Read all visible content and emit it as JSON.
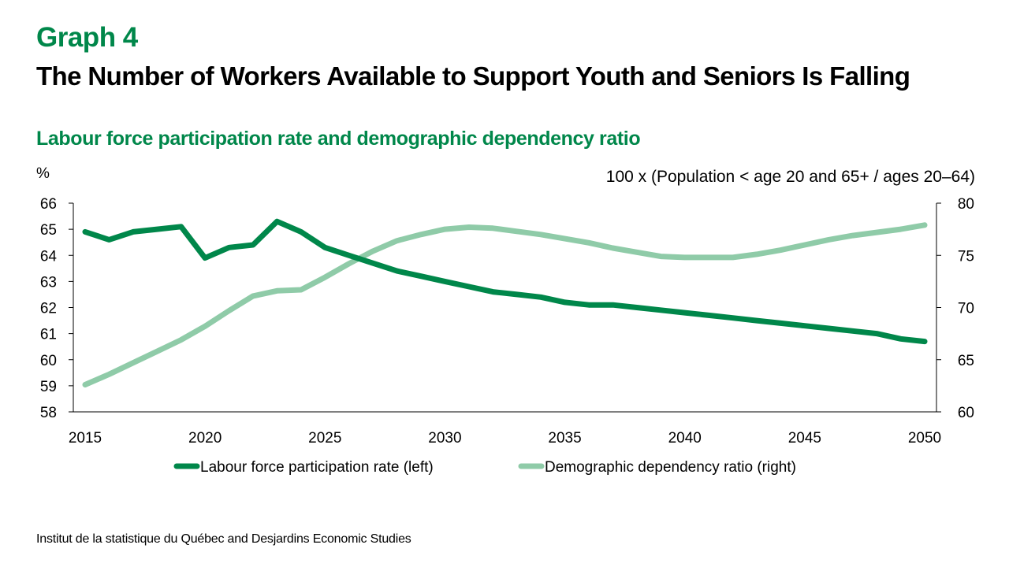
{
  "header": {
    "graph_label": "Graph 4",
    "title": "The Number of Workers Available to Support Youth and Seniors Is Falling",
    "subtitle": "Labour force participation rate and demographic dependency ratio"
  },
  "source": "Institut de la statistique du Québec and Desjardins Economic Studies",
  "colors": {
    "accent": "#00874A",
    "series_left": "#00874A",
    "series_right": "#8FCBA8"
  },
  "chart_data": {
    "type": "line",
    "title": "Labour force participation rate and demographic dependency ratio",
    "ylabel_left": "%",
    "ylabel_right": "100 x (Population < age 20 and 65+ / ages 20–64)",
    "xlabel": "",
    "x": [
      2015,
      2016,
      2017,
      2018,
      2019,
      2020,
      2021,
      2022,
      2023,
      2024,
      2025,
      2026,
      2027,
      2028,
      2029,
      2030,
      2031,
      2032,
      2033,
      2034,
      2035,
      2036,
      2037,
      2038,
      2039,
      2040,
      2041,
      2042,
      2043,
      2044,
      2045,
      2046,
      2047,
      2048,
      2049,
      2050
    ],
    "x_ticks": [
      "2015",
      "2020",
      "2025",
      "2030",
      "2035",
      "2040",
      "2045",
      "2050"
    ],
    "x_tick_values": [
      2015,
      2020,
      2025,
      2030,
      2035,
      2040,
      2045,
      2050
    ],
    "xlim": [
      2015,
      2050
    ],
    "ylim_left": [
      58,
      66
    ],
    "y_ticks_left": [
      "58",
      "59",
      "60",
      "61",
      "62",
      "63",
      "64",
      "65",
      "66"
    ],
    "ylim_right": [
      60,
      80
    ],
    "y_ticks_right": [
      "60",
      "65",
      "70",
      "75",
      "80"
    ],
    "grid": false,
    "legend_position": "bottom-center",
    "series": [
      {
        "name": "Labour force participation rate (left)",
        "axis": "left",
        "color": "#00874A",
        "values": [
          64.9,
          64.6,
          64.9,
          65.0,
          65.1,
          63.9,
          64.3,
          64.4,
          65.3,
          64.9,
          64.3,
          64.0,
          63.7,
          63.4,
          63.2,
          63.0,
          62.8,
          62.6,
          62.5,
          62.4,
          62.2,
          62.1,
          62.1,
          62.0,
          61.9,
          61.8,
          61.7,
          61.6,
          61.5,
          61.4,
          61.3,
          61.2,
          61.1,
          61.0,
          60.8,
          60.7
        ]
      },
      {
        "name": "Demographic dependency ratio (right)",
        "axis": "right",
        "color": "#8FCBA8",
        "values": [
          62.6,
          63.6,
          64.7,
          65.8,
          66.9,
          68.2,
          69.7,
          71.1,
          71.6,
          71.7,
          72.9,
          74.2,
          75.4,
          76.4,
          77.0,
          77.5,
          77.7,
          77.6,
          77.3,
          77.0,
          76.6,
          76.2,
          75.7,
          75.3,
          74.9,
          74.8,
          74.8,
          74.8,
          75.1,
          75.5,
          76.0,
          76.5,
          76.9,
          77.2,
          77.5,
          77.9
        ]
      }
    ]
  }
}
